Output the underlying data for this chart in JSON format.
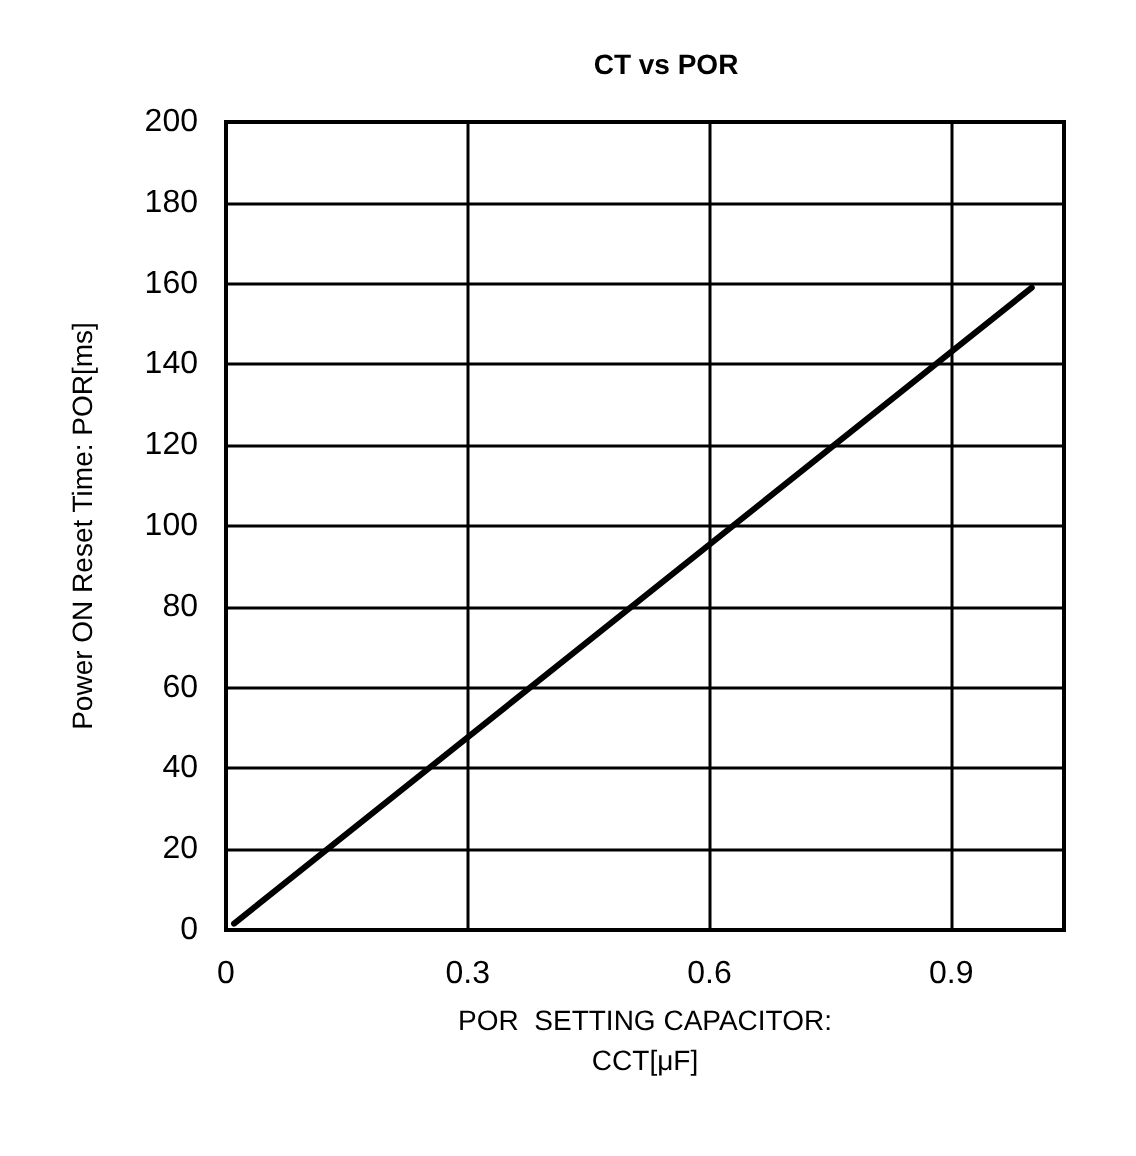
{
  "chart_data": {
    "type": "line",
    "title": "CT vs POR",
    "xlabel": "POR  SETTING CAPACITOR:\nCCT[μF]",
    "ylabel": "Power ON Reset Time: POR[ms]",
    "x": [
      0.01,
      1.0
    ],
    "series": [
      {
        "color": "#000000",
        "values": [
          1.6,
          159
        ]
      }
    ],
    "xlim": [
      0,
      1.04
    ],
    "xticks": [
      0,
      0.3,
      0.6,
      0.9
    ],
    "ylim": [
      0,
      200
    ],
    "yticks": [
      0,
      20,
      40,
      60,
      80,
      100,
      120,
      140,
      160,
      180,
      200
    ],
    "grid": true,
    "marker": "none",
    "line_style": "solid"
  }
}
